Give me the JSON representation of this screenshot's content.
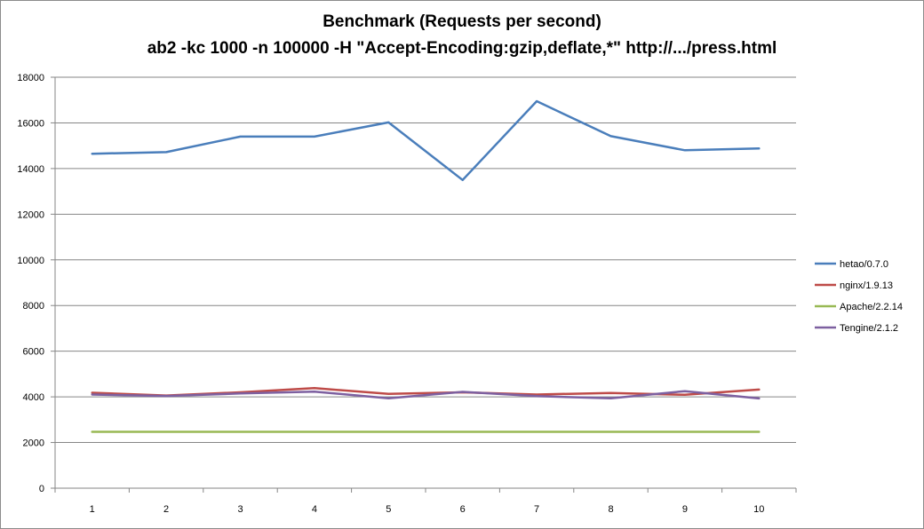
{
  "chart_data": {
    "type": "line",
    "title": "Benchmark (Requests per second)",
    "subtitle": "ab2 -kc 1000 -n 100000 -H \"Accept-Encoding:gzip,deflate,*\" http://.../press.html",
    "xlabel": "",
    "ylabel": "",
    "categories": [
      "1",
      "2",
      "3",
      "4",
      "5",
      "6",
      "7",
      "8",
      "9",
      "10"
    ],
    "ylim": [
      0,
      18000
    ],
    "yticks": [
      0,
      2000,
      4000,
      6000,
      8000,
      10000,
      12000,
      14000,
      16000,
      18000
    ],
    "grid": true,
    "legend_position": "right",
    "series": [
      {
        "name": "hetao/0.7.0",
        "color": "#4a7ebb",
        "values": [
          14650,
          14720,
          15400,
          15400,
          16020,
          13500,
          16950,
          15420,
          14800,
          14880
        ]
      },
      {
        "name": "nginx/1.9.13",
        "color": "#be4b48",
        "values": [
          4180,
          4060,
          4200,
          4380,
          4130,
          4200,
          4100,
          4170,
          4090,
          4320
        ]
      },
      {
        "name": "Apache/2.2.14",
        "color": "#98b954",
        "values": [
          2470,
          2470,
          2470,
          2470,
          2470,
          2470,
          2470,
          2470,
          2470,
          2470
        ]
      },
      {
        "name": "Tengine/2.1.2",
        "color": "#7d60a0",
        "values": [
          4100,
          4040,
          4150,
          4230,
          3940,
          4220,
          4030,
          3940,
          4250,
          3930
        ]
      }
    ]
  }
}
